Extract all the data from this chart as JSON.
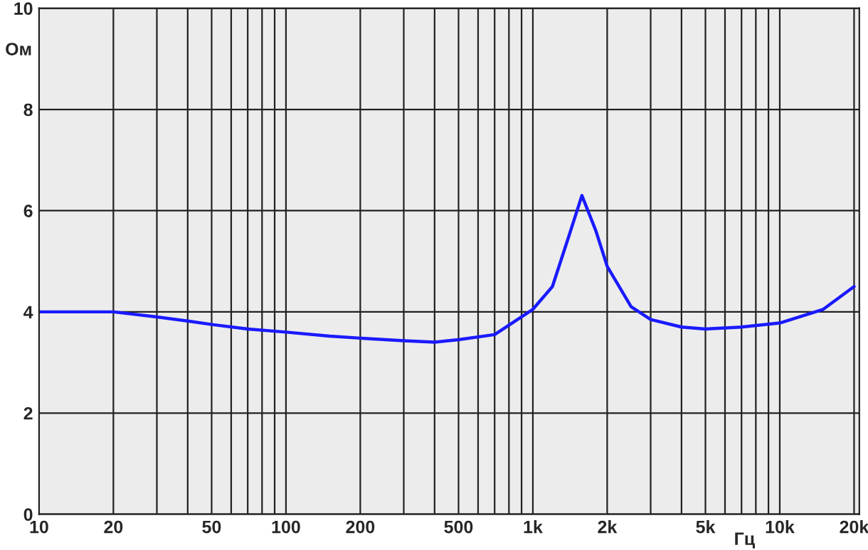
{
  "chart_data": {
    "type": "line",
    "xlabel": "Гц",
    "ylabel": "Ом",
    "log": "x",
    "x": [
      10,
      15,
      20,
      30,
      40,
      50,
      70,
      100,
      150,
      200,
      300,
      400,
      500,
      700,
      1000,
      1200,
      1400,
      1580,
      1800,
      2000,
      2500,
      3000,
      4000,
      5000,
      7000,
      10000,
      15000,
      20000
    ],
    "series": [
      {
        "color": "#1a1aff",
        "values": [
          4.0,
          4.0,
          4.0,
          3.9,
          3.82,
          3.75,
          3.66,
          3.6,
          3.52,
          3.48,
          3.43,
          3.4,
          3.45,
          3.55,
          4.05,
          4.5,
          5.5,
          6.3,
          5.6,
          4.9,
          4.1,
          3.85,
          3.7,
          3.66,
          3.7,
          3.78,
          4.05,
          4.5
        ]
      }
    ],
    "xlim": [
      10,
      21000
    ],
    "ylim": [
      0,
      10
    ],
    "xticks": [
      10,
      20,
      {
        "value": 30,
        "label": null
      },
      {
        "value": 40,
        "label": null
      },
      50,
      {
        "value": 60,
        "label": null
      },
      {
        "value": 70,
        "label": null
      },
      {
        "value": 80,
        "label": null
      },
      {
        "value": 90,
        "label": null
      },
      100,
      200,
      {
        "value": 300,
        "label": null
      },
      {
        "value": 400,
        "label": null
      },
      500,
      {
        "value": 600,
        "label": null
      },
      {
        "value": 700,
        "label": null
      },
      {
        "value": 800,
        "label": null
      },
      {
        "value": 900,
        "label": null
      },
      {
        "value": 1000,
        "label": "1k"
      },
      {
        "value": 2000,
        "label": "2k"
      },
      {
        "value": 3000,
        "label": null
      },
      {
        "value": 4000,
        "label": null
      },
      {
        "value": 5000,
        "label": "5k"
      },
      {
        "value": 6000,
        "label": null
      },
      {
        "value": 7000,
        "label": null
      },
      {
        "value": 8000,
        "label": null
      },
      {
        "value": 9000,
        "label": null
      },
      {
        "value": 10000,
        "label": "10k"
      },
      {
        "value": 20000,
        "label": "20k"
      }
    ],
    "yticks": [
      0,
      2,
      4,
      6,
      8,
      10
    ],
    "grid": true,
    "line_style": "solid",
    "marker": "none"
  }
}
